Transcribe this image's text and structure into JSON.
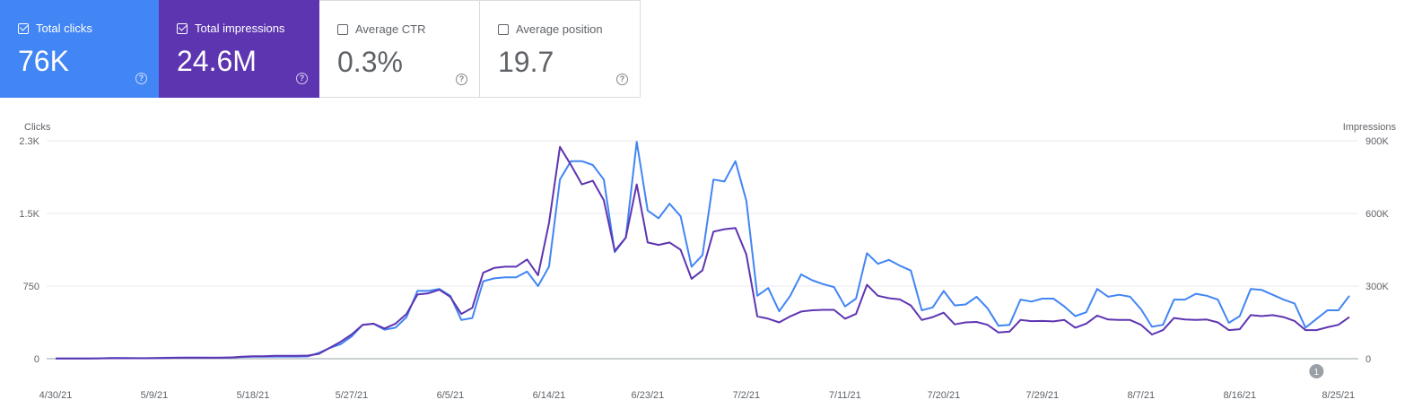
{
  "metrics": [
    {
      "label": "Total clicks",
      "value": "76K",
      "checked": true,
      "color": "#4285f4"
    },
    {
      "label": "Total impressions",
      "value": "24.6M",
      "checked": true,
      "color": "#5e35b1"
    },
    {
      "label": "Average CTR",
      "value": "0.3%",
      "checked": false,
      "color": "#ffffff"
    },
    {
      "label": "Average position",
      "value": "19.7",
      "checked": false,
      "color": "#ffffff"
    }
  ],
  "chart_data": {
    "type": "line",
    "left_axis_label": "Clicks",
    "right_axis_label": "Impressions",
    "left_ticks": [
      "2.3K",
      "1.5K",
      "750",
      "0"
    ],
    "right_ticks": [
      "900K",
      "600K",
      "300K",
      "0"
    ],
    "x_ticks": [
      "4/30/21",
      "5/9/21",
      "5/18/21",
      "5/27/21",
      "6/5/21",
      "6/14/21",
      "6/23/21",
      "7/2/21",
      "7/11/21",
      "7/20/21",
      "7/29/21",
      "8/7/21",
      "8/16/21",
      "8/25/21"
    ],
    "start_date": "2021-04-30",
    "left_max": 2250,
    "right_max": 900000,
    "grid": true,
    "annotation": {
      "label": "1",
      "date": "2021-08-23"
    },
    "series": [
      {
        "name": "Clicks",
        "axis": "left",
        "color": "#4285f4",
        "values": [
          2,
          2,
          2,
          3,
          4,
          8,
          8,
          7,
          6,
          6,
          10,
          10,
          12,
          12,
          10,
          10,
          12,
          18,
          20,
          20,
          22,
          22,
          22,
          24,
          60,
          110,
          150,
          230,
          350,
          360,
          300,
          320,
          430,
          700,
          700,
          720,
          650,
          400,
          420,
          800,
          830,
          840,
          840,
          900,
          750,
          950,
          1850,
          2040,
          2040,
          2000,
          1850,
          1100,
          1250,
          2240,
          1530,
          1450,
          1600,
          1470,
          950,
          1070,
          1850,
          1830,
          2040,
          1630,
          650,
          730,
          490,
          650,
          870,
          810,
          770,
          740,
          540,
          620,
          1090,
          980,
          1020,
          960,
          910,
          500,
          530,
          700,
          550,
          560,
          640,
          520,
          340,
          350,
          610,
          590,
          620,
          620,
          540,
          440,
          480,
          720,
          640,
          660,
          640,
          510,
          330,
          350,
          610,
          610,
          670,
          650,
          610,
          370,
          440,
          720,
          710,
          660,
          610,
          570,
          320,
          410,
          500,
          500,
          650
        ],
        "label": "Total clicks"
      },
      {
        "name": "Impressions",
        "axis": "right",
        "color": "#5e35b1",
        "values": [
          1000,
          1000,
          1000,
          1000,
          1500,
          2000,
          2000,
          2000,
          2000,
          2500,
          3000,
          4000,
          4000,
          4000,
          4000,
          4000,
          5000,
          8000,
          10000,
          10000,
          12000,
          12000,
          12000,
          13000,
          20000,
          45000,
          70000,
          100000,
          140000,
          145000,
          125000,
          145000,
          185000,
          265000,
          270000,
          285000,
          255000,
          185000,
          210000,
          355000,
          375000,
          380000,
          380000,
          410000,
          345000,
          560000,
          875000,
          800000,
          720000,
          735000,
          655000,
          445000,
          500000,
          720000,
          480000,
          470000,
          480000,
          450000,
          330000,
          365000,
          525000,
          535000,
          540000,
          430000,
          175000,
          165000,
          150000,
          175000,
          195000,
          200000,
          202000,
          202000,
          165000,
          185000,
          305000,
          260000,
          250000,
          245000,
          220000,
          160000,
          172000,
          190000,
          142000,
          150000,
          152000,
          140000,
          108000,
          112000,
          160000,
          155000,
          156000,
          154000,
          160000,
          128000,
          145000,
          178000,
          162000,
          160000,
          160000,
          140000,
          100000,
          118000,
          168000,
          162000,
          160000,
          162000,
          150000,
          118000,
          122000,
          180000,
          176000,
          180000,
          172000,
          156000,
          118000,
          118000,
          130000,
          140000,
          172000
        ],
        "label": "Total impressions"
      }
    ]
  }
}
